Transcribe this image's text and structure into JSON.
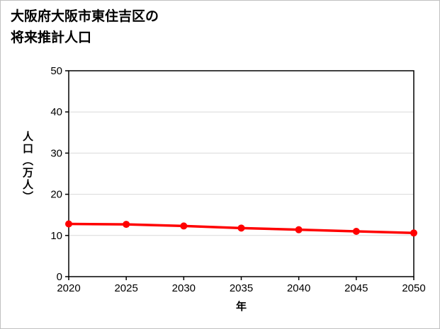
{
  "title": {
    "line1": "大阪府大阪市東住吉区の",
    "line2": "将来推計人口"
  },
  "chart_data": {
    "type": "line",
    "title": "大阪府大阪市東住吉区の将来推計人口",
    "x": [
      2020,
      2025,
      2030,
      2035,
      2040,
      2045,
      2050
    ],
    "series": [
      {
        "name": "将来推計人口",
        "values": [
          12.8,
          12.7,
          12.3,
          11.8,
          11.4,
          11.0,
          10.6
        ],
        "color": "#ff0000",
        "marker": "circle"
      }
    ],
    "xlabel": "年",
    "ylabel": "人口（万人）",
    "xlim": [
      2020,
      2050
    ],
    "ylim": [
      0,
      50
    ],
    "xticks": [
      2020,
      2025,
      2030,
      2035,
      2040,
      2045,
      2050
    ],
    "yticks": [
      0,
      10,
      20,
      30,
      40,
      50
    ],
    "grid": "horizontal",
    "grid_color": "#d9d9d9",
    "axis_color": "#000000",
    "background_color": "#ffffff",
    "legend": "none"
  }
}
